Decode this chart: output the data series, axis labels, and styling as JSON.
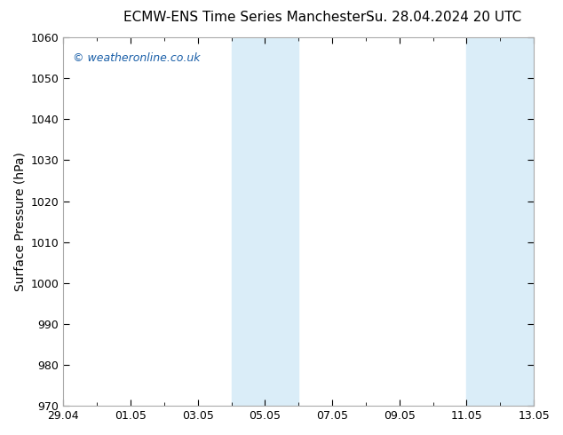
{
  "title_left": "ECMW-ENS Time Series Manchester",
  "title_right": "Su. 28.04.2024 20 UTC",
  "ylabel": "Surface Pressure (hPa)",
  "ylim": [
    970,
    1060
  ],
  "yticks": [
    970,
    980,
    990,
    1000,
    1010,
    1020,
    1030,
    1040,
    1050,
    1060
  ],
  "xtick_labels": [
    "29.04",
    "01.05",
    "03.05",
    "05.05",
    "07.05",
    "09.05",
    "11.05",
    "13.05"
  ],
  "xtick_positions": [
    0,
    2,
    4,
    6,
    8,
    10,
    12,
    14
  ],
  "xlim": [
    0,
    14
  ],
  "shaded_bands": [
    {
      "x_start": 5,
      "x_end": 7
    },
    {
      "x_start": 12,
      "x_end": 14
    }
  ],
  "watermark": "© weatheronline.co.uk",
  "watermark_color": "#1a5fa8",
  "background_color": "#ffffff",
  "plot_bg_color": "#ffffff",
  "shaded_color": "#daedf8",
  "border_color": "#aaaaaa",
  "title_color": "#000000",
  "title_fontsize": 11,
  "tick_fontsize": 9,
  "ylabel_fontsize": 10
}
